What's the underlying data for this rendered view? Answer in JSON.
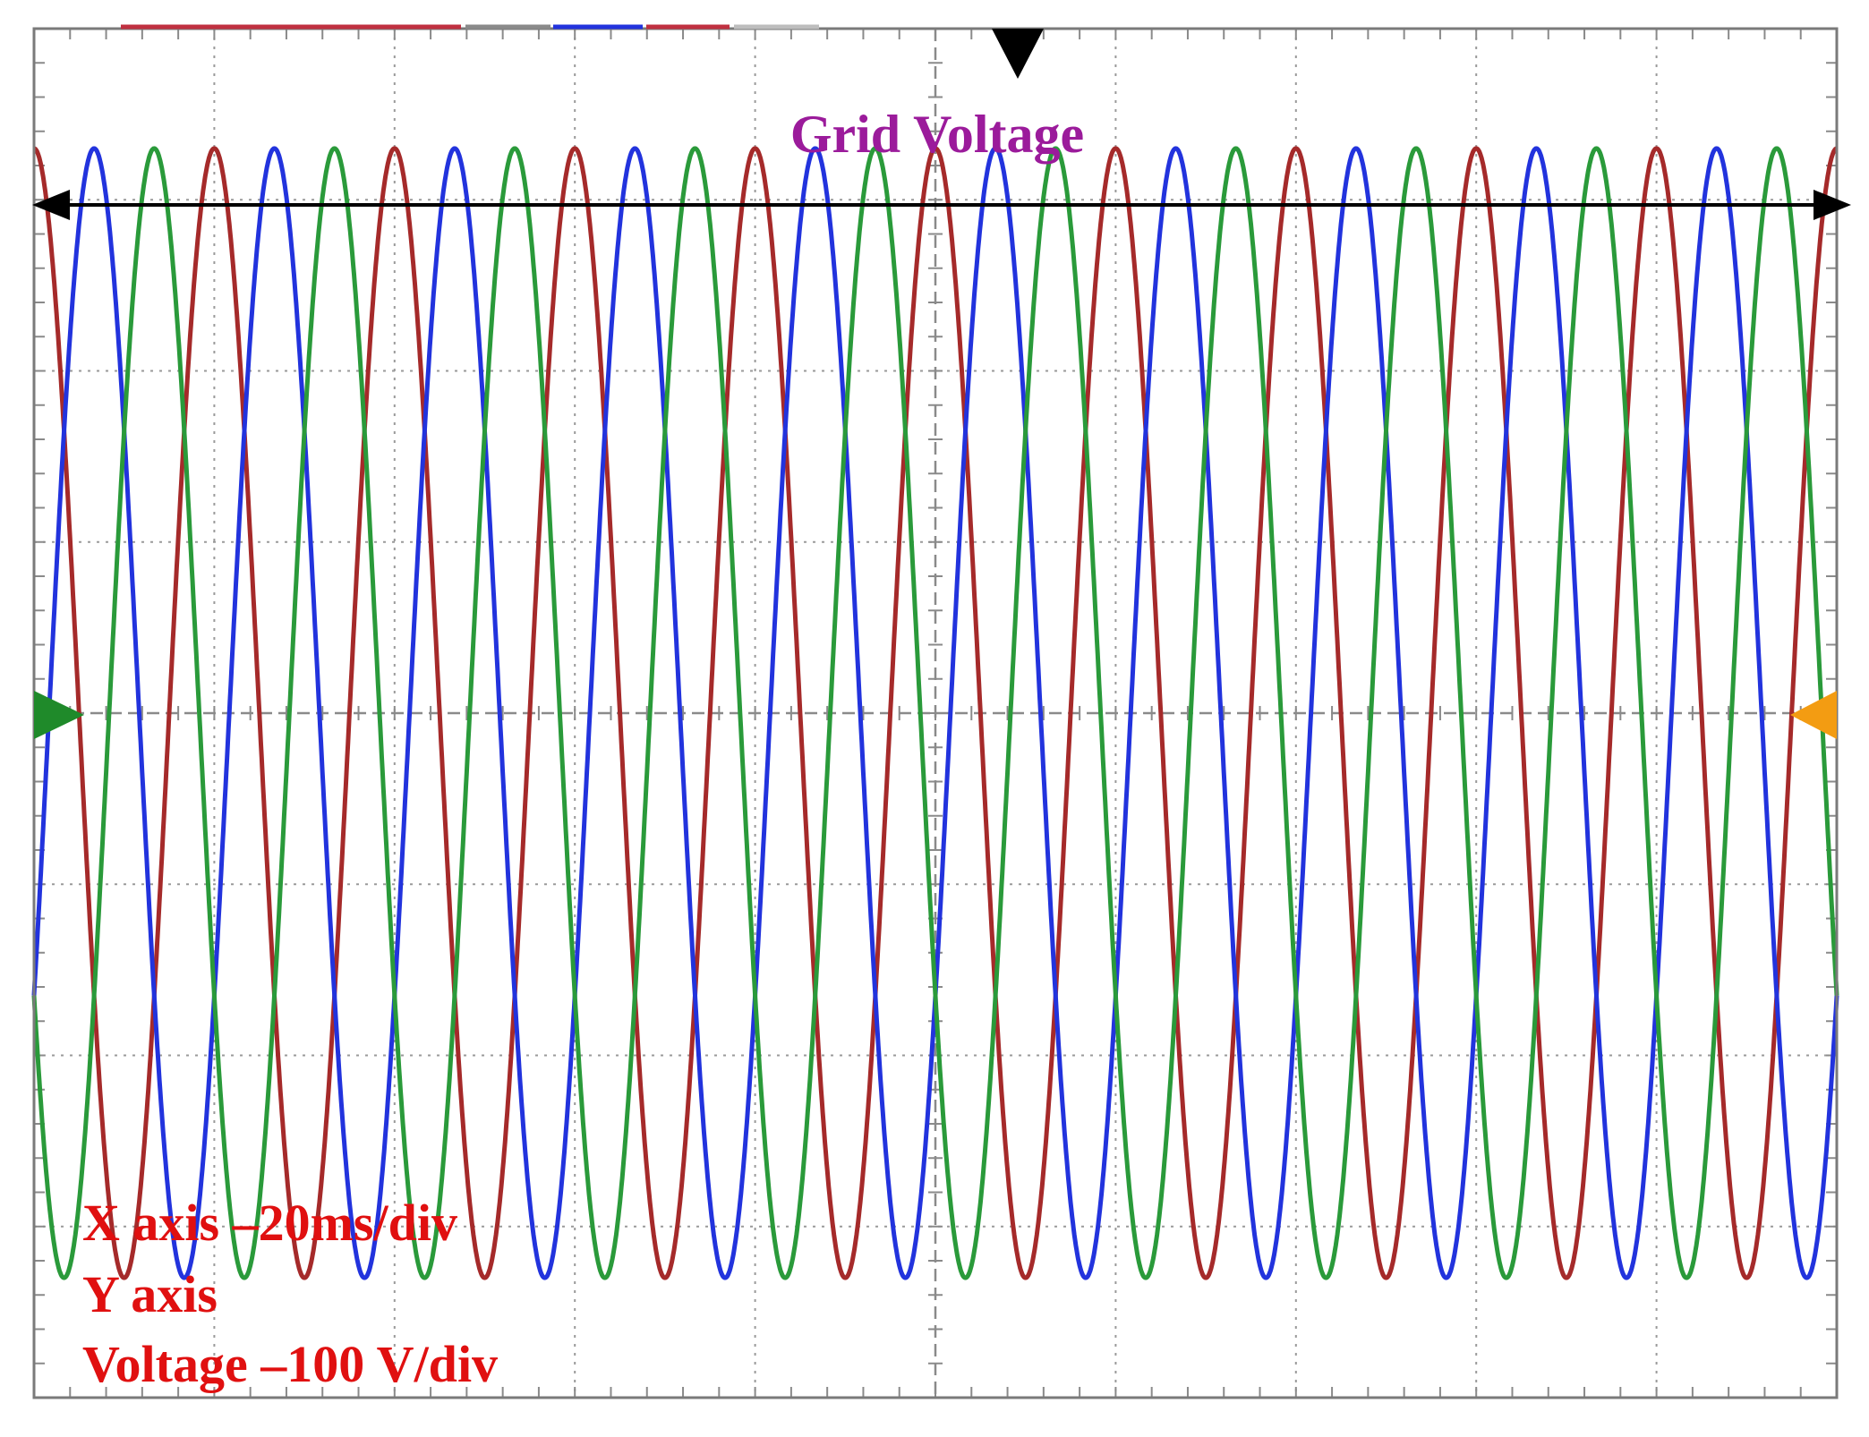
{
  "chart_data": {
    "type": "line",
    "title": "Grid Voltage",
    "annotations": [
      "X axis –20ms/div",
      "Y axis",
      "Voltage –100 V/div"
    ],
    "x_scale": "20ms/div",
    "y_scale": "100 V/div",
    "x_divisions": 10,
    "y_divisions": 8,
    "x_range_ms": [
      0,
      200
    ],
    "y_range_V": [
      -400,
      400
    ],
    "grid": true,
    "frequency_Hz": 50,
    "series": [
      {
        "amplitude_V": 330,
        "phase_deg": 90,
        "color": "#a52a2a"
      },
      {
        "amplitude_V": 330,
        "phase_deg": -30,
        "color": "#2233dd"
      },
      {
        "amplitude_V": 330,
        "phase_deg": 210,
        "color": "#2a9a3a"
      }
    ]
  },
  "colors": {
    "title": "#9b1b9b",
    "annotation": "#e01010",
    "grid": "#9a9a9a",
    "frame": "#7a7a7a",
    "arrow": "#000000",
    "trigger_marker": "#000000",
    "left_marker": "#1f8a2a",
    "right_marker": "#f39c12"
  }
}
